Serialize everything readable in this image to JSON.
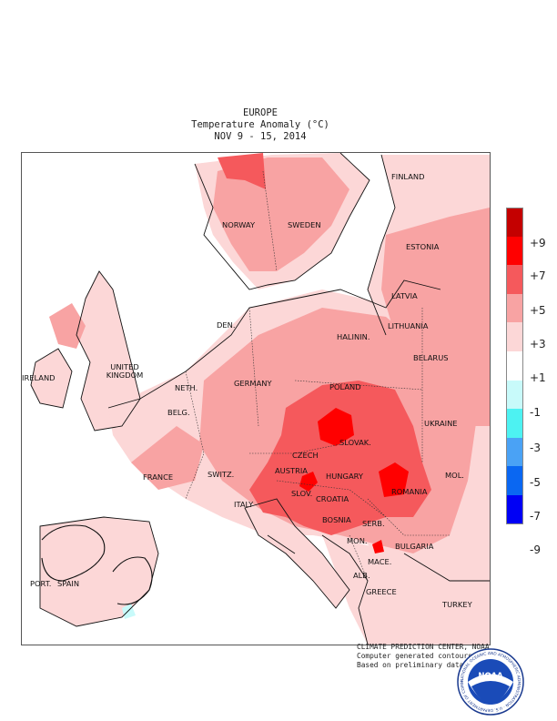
{
  "title": {
    "region": "EUROPE",
    "subtitle": "Temperature Anomaly (°C)",
    "period": "NOV 9 - 15, 2014"
  },
  "legend": {
    "levels": [
      "+9",
      "+7",
      "+5",
      "+3",
      "+1",
      "-1",
      "-3",
      "-5",
      "-7",
      "-9"
    ],
    "colors": [
      "#c40000",
      "#ff0000",
      "#f5595c",
      "#f8a3a3",
      "#fcd7d7",
      "#ffffff",
      "#c8fafa",
      "#4df2f2",
      "#4aa2f5",
      "#0a67f2",
      "#0000f5"
    ]
  },
  "country_labels": [
    "FINLAND",
    "NORWAY",
    "SWEDEN",
    "ESTONIA",
    "LATVIA",
    "DEN.",
    "LITHUANIA",
    "HALININ.",
    "UNITED KINGDOM",
    "IRELAND",
    "BELARUS",
    "POLAND",
    "GERMANY",
    "NETH.",
    "BELG.",
    "CZECH",
    "SLOVAK.",
    "UKRAINE",
    "FRANCE",
    "SWITZ.",
    "AUSTRIA",
    "HUNGARY",
    "MOL.",
    "ROMANIA",
    "SLOV.",
    "CROATIA",
    "ITALY",
    "BOSNIA",
    "SERB.",
    "BULGARIA",
    "MON.",
    "MACE.",
    "PORT.",
    "SPAIN",
    "ALB.",
    "GREECE",
    "TURKEY"
  ],
  "credits": [
    "CLIMATE PREDICTION CENTER, NOAA",
    "Computer generated contours",
    "Based on preliminary data"
  ],
  "logo": {
    "name": "NOAA",
    "text": "NOAA",
    "ring_text": "NATIONAL OCEANIC AND ATMOSPHERIC ADMINISTRATION · U.S. DEPARTMENT OF COMMERCE"
  }
}
